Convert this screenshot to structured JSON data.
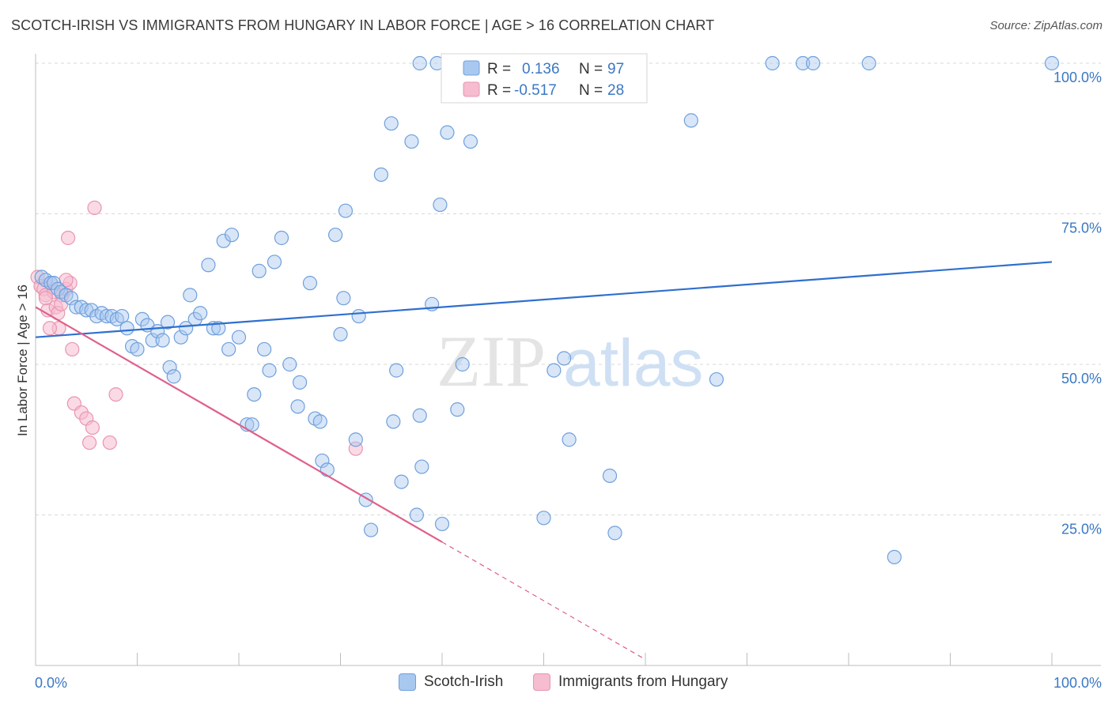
{
  "title": "SCOTCH-IRISH VS IMMIGRANTS FROM HUNGARY IN LABOR FORCE | AGE > 16 CORRELATION CHART",
  "source": "Source: ZipAtlas.com",
  "watermark": {
    "zip": "ZIP",
    "atlas": "atlas"
  },
  "colors": {
    "blue_fill": "#a8c8f0",
    "blue_stroke": "#6fa0dc",
    "blue_line": "#2f6fcf",
    "pink_fill": "#f6bcd0",
    "pink_stroke": "#e995b2",
    "pink_line": "#e0608a",
    "grid": "#d8d8d8",
    "tick_text": "#3a78c4"
  },
  "legend_box": {
    "rows": [
      {
        "r_label": "R =",
        "r_value": "0.136",
        "n_label": "N =",
        "n_value": "97"
      },
      {
        "r_label": "R =",
        "r_value": "-0.517",
        "n_label": "N =",
        "n_value": "28"
      }
    ]
  },
  "bottom_legend": {
    "blue": "Scotch-Irish",
    "pink": "Immigrants from Hungary"
  },
  "chart_data": {
    "type": "scatter",
    "title": "SCOTCH-IRISH VS IMMIGRANTS FROM HUNGARY IN LABOR FORCE | AGE > 16 CORRELATION CHART",
    "xlabel": "",
    "ylabel": "In Labor Force | Age > 16",
    "xlim": [
      0,
      100
    ],
    "ylim": [
      0,
      100
    ],
    "x_tick_labels": [
      "0.0%",
      "100.0%"
    ],
    "y_tick_labels": [
      {
        "value": 100,
        "label": "100.0%"
      },
      {
        "value": 75,
        "label": "75.0%"
      },
      {
        "value": 50,
        "label": "50.0%"
      },
      {
        "value": 25,
        "label": "25.0%"
      }
    ],
    "grid": true,
    "legend_position": "top-center",
    "series": [
      {
        "name": "Scotch-Irish",
        "color": "#6fa0dc",
        "R": 0.136,
        "N": 97,
        "trend": {
          "x": [
            0,
            100
          ],
          "y": [
            54.5,
            67.0
          ]
        },
        "points": [
          [
            0.6,
            64.5
          ],
          [
            1.0,
            64.0
          ],
          [
            1.5,
            63.5
          ],
          [
            1.8,
            63.5
          ],
          [
            2.2,
            62.5
          ],
          [
            2.5,
            62.0
          ],
          [
            3.0,
            61.5
          ],
          [
            3.5,
            61.0
          ],
          [
            4.0,
            59.5
          ],
          [
            4.5,
            59.5
          ],
          [
            5.0,
            59.0
          ],
          [
            5.5,
            59.0
          ],
          [
            6.0,
            58.0
          ],
          [
            6.5,
            58.5
          ],
          [
            7.0,
            58.0
          ],
          [
            7.5,
            58.0
          ],
          [
            8.0,
            57.5
          ],
          [
            8.5,
            58.0
          ],
          [
            9.0,
            56.0
          ],
          [
            9.5,
            53.0
          ],
          [
            10.0,
            52.5
          ],
          [
            10.5,
            57.5
          ],
          [
            11.0,
            56.5
          ],
          [
            11.5,
            54.0
          ],
          [
            12.0,
            55.5
          ],
          [
            12.5,
            54.0
          ],
          [
            13.0,
            57.0
          ],
          [
            13.2,
            49.5
          ],
          [
            13.6,
            48.0
          ],
          [
            14.3,
            54.5
          ],
          [
            14.8,
            56.0
          ],
          [
            15.2,
            61.5
          ],
          [
            15.7,
            57.5
          ],
          [
            16.2,
            58.5
          ],
          [
            17.0,
            66.5
          ],
          [
            17.5,
            56.0
          ],
          [
            18.0,
            56.0
          ],
          [
            18.5,
            70.5
          ],
          [
            19.0,
            52.5
          ],
          [
            19.3,
            71.5
          ],
          [
            20.0,
            54.5
          ],
          [
            20.8,
            40.0
          ],
          [
            21.3,
            40.0
          ],
          [
            21.5,
            45.0
          ],
          [
            22.0,
            65.5
          ],
          [
            22.5,
            52.5
          ],
          [
            23.0,
            49.0
          ],
          [
            23.5,
            67.0
          ],
          [
            24.2,
            71.0
          ],
          [
            25.0,
            50.0
          ],
          [
            25.8,
            43.0
          ],
          [
            26.0,
            47.0
          ],
          [
            27.0,
            63.5
          ],
          [
            27.5,
            41.0
          ],
          [
            28.0,
            40.5
          ],
          [
            28.2,
            34.0
          ],
          [
            28.7,
            32.5
          ],
          [
            29.5,
            71.5
          ],
          [
            30.0,
            55.0
          ],
          [
            30.3,
            61.0
          ],
          [
            30.5,
            75.5
          ],
          [
            31.5,
            37.5
          ],
          [
            31.8,
            58.0
          ],
          [
            32.5,
            27.5
          ],
          [
            33.0,
            22.5
          ],
          [
            34.0,
            81.5
          ],
          [
            35.0,
            90.0
          ],
          [
            35.2,
            40.5
          ],
          [
            35.5,
            49.0
          ],
          [
            36.0,
            30.5
          ],
          [
            37.0,
            87.0
          ],
          [
            37.5,
            25.0
          ],
          [
            37.8,
            41.5
          ],
          [
            38.0,
            33.0
          ],
          [
            39.0,
            60.0
          ],
          [
            39.8,
            76.5
          ],
          [
            40.0,
            23.5
          ],
          [
            40.5,
            88.5
          ],
          [
            41.5,
            42.5
          ],
          [
            42.0,
            50.0
          ],
          [
            42.8,
            87.0
          ],
          [
            50.0,
            24.5
          ],
          [
            51.0,
            49.0
          ],
          [
            52.0,
            51.0
          ],
          [
            52.5,
            37.5
          ],
          [
            56.5,
            31.5
          ],
          [
            57.0,
            22.0
          ],
          [
            64.5,
            90.5
          ],
          [
            67.0,
            47.5
          ],
          [
            72.5,
            100.0
          ],
          [
            75.5,
            100.0
          ],
          [
            76.5,
            100.0
          ],
          [
            82.0,
            100.0
          ],
          [
            84.5,
            18.0
          ],
          [
            100.0,
            100.0
          ],
          [
            37.8,
            100.0
          ],
          [
            39.5,
            100.0
          ]
        ]
      },
      {
        "name": "Immigrants from Hungary",
        "color": "#e995b2",
        "R": -0.517,
        "N": 28,
        "trend": {
          "x": [
            0,
            40.0
          ],
          "y": [
            59.5,
            20.5
          ],
          "dashed_x": [
            40.0,
            60.0
          ],
          "dashed_y": [
            20.5,
            1.0
          ]
        },
        "points": [
          [
            0.2,
            64.5
          ],
          [
            0.5,
            63.0
          ],
          [
            0.8,
            62.5
          ],
          [
            1.0,
            61.5
          ],
          [
            1.2,
            59.0
          ],
          [
            1.5,
            63.5
          ],
          [
            1.8,
            62.0
          ],
          [
            2.0,
            59.5
          ],
          [
            2.2,
            58.5
          ],
          [
            2.3,
            56.0
          ],
          [
            2.6,
            61.5
          ],
          [
            3.0,
            62.5
          ],
          [
            3.2,
            71.0
          ],
          [
            3.4,
            63.5
          ],
          [
            3.6,
            52.5
          ],
          [
            3.8,
            43.5
          ],
          [
            4.5,
            42.0
          ],
          [
            5.0,
            41.0
          ],
          [
            5.3,
            37.0
          ],
          [
            5.6,
            39.5
          ],
          [
            5.8,
            76.0
          ],
          [
            7.3,
            37.0
          ],
          [
            7.9,
            45.0
          ],
          [
            1.4,
            56.0
          ],
          [
            2.5,
            60.0
          ],
          [
            1.0,
            61.0
          ],
          [
            3.0,
            64.0
          ],
          [
            31.5,
            36.0
          ]
        ]
      }
    ]
  }
}
